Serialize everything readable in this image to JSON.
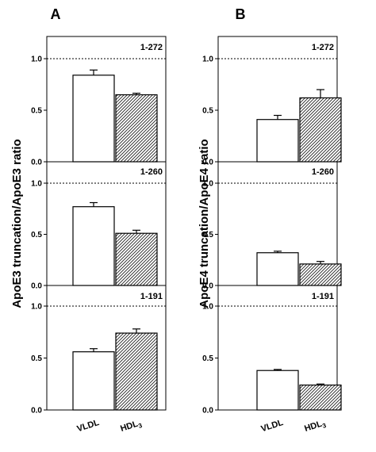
{
  "chart_data": [
    {
      "type": "bar",
      "panel_letter": "A",
      "ylabel": "ApoE3 truncation/ApoE3 ratio",
      "categories": [
        "VLDL",
        "HDL3"
      ],
      "category_labels": [
        {
          "main": "VLDL",
          "sub": ""
        },
        {
          "main": "HDL",
          "sub": "3"
        }
      ],
      "bar_fills": [
        "open",
        "hatched"
      ],
      "reference_line": 1.0,
      "ylim": [
        0,
        1.0
      ],
      "yticks": [
        "0.0",
        "0.5",
        "1.0"
      ],
      "subpanels": [
        {
          "label": "1-272",
          "values": [
            0.84,
            0.65
          ],
          "errors": [
            0.05,
            0.015
          ]
        },
        {
          "label": "1-260",
          "values": [
            0.77,
            0.51
          ],
          "errors": [
            0.04,
            0.03
          ]
        },
        {
          "label": "1-191",
          "values": [
            0.56,
            0.74
          ],
          "errors": [
            0.03,
            0.04
          ]
        }
      ]
    },
    {
      "type": "bar",
      "panel_letter": "B",
      "ylabel": "ApoE4 truncation/ApoE4 ratio",
      "categories": [
        "VLDL",
        "HDL3"
      ],
      "category_labels": [
        {
          "main": "VLDL",
          "sub": ""
        },
        {
          "main": "HDL",
          "sub": "3"
        }
      ],
      "bar_fills": [
        "open",
        "hatched"
      ],
      "reference_line": 1.0,
      "ylim": [
        0,
        1.0
      ],
      "yticks": [
        "0.0",
        "0.5",
        "1.0"
      ],
      "subpanels": [
        {
          "label": "1-272",
          "values": [
            0.41,
            0.62
          ],
          "errors": [
            0.04,
            0.08
          ]
        },
        {
          "label": "1-260",
          "values": [
            0.32,
            0.21
          ],
          "errors": [
            0.015,
            0.025
          ]
        },
        {
          "label": "1-191",
          "values": [
            0.38,
            0.24
          ],
          "errors": [
            0.01,
            0.01
          ]
        }
      ]
    }
  ]
}
